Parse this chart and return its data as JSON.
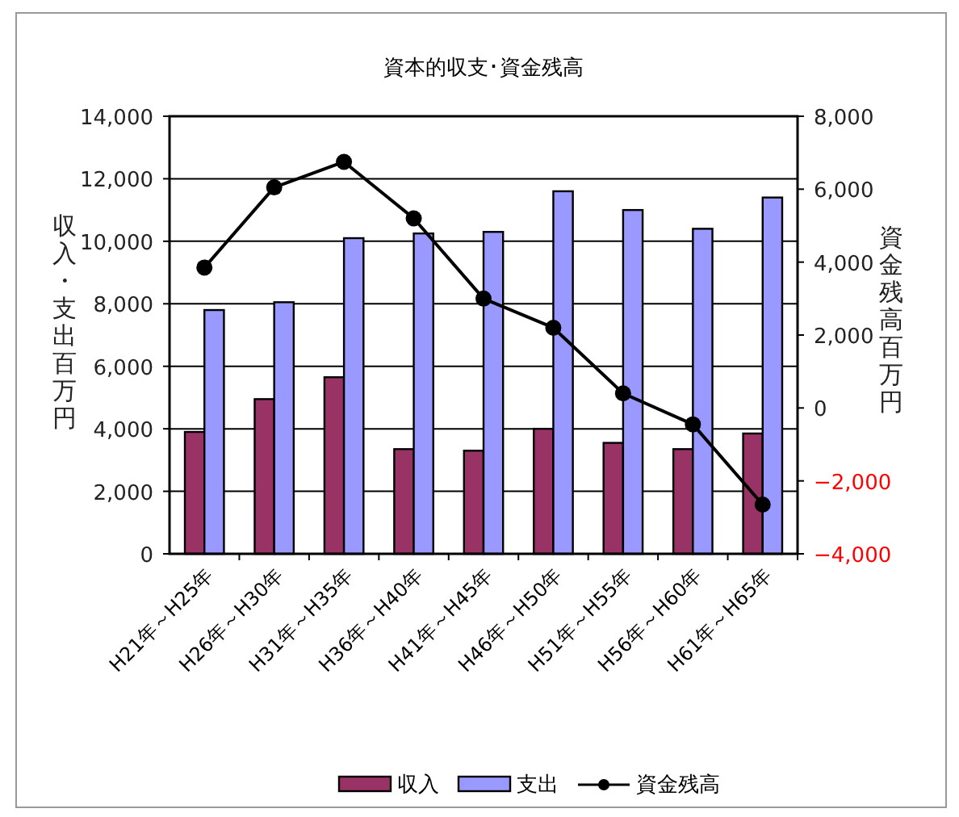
{
  "chart_data": {
    "type": "bar",
    "title": "資本的収支･資金残高",
    "ylabel": "収入・支出百万円",
    "y2label": "資金残高百万円",
    "categories": [
      "H21年～H25年",
      "H26年～H30年",
      "H31年～H35年",
      "H36年～H40年",
      "H41年～H45年",
      "H46年～H50年",
      "H51年～H55年",
      "H56年～H60年",
      "H61年～H65年"
    ],
    "series": [
      {
        "name": "収入",
        "color": "#993366",
        "values": [
          3900,
          4950,
          5650,
          3350,
          3300,
          4000,
          3550,
          3350,
          3850
        ]
      },
      {
        "name": "支出",
        "color": "#9999ff",
        "values": [
          7800,
          8050,
          10100,
          10250,
          10300,
          11600,
          11000,
          10400,
          11400
        ]
      },
      {
        "name": "資金残高",
        "type": "line",
        "axis": "y2",
        "color": "#000000",
        "marker": "circle",
        "values": [
          3850,
          6050,
          6750,
          5200,
          3000,
          2200,
          400,
          -450,
          -2650
        ]
      }
    ],
    "ylim": [
      0,
      14000
    ],
    "yticks": [
      {
        "value": 0,
        "label": "0"
      },
      {
        "value": 2000,
        "label": "2,000"
      },
      {
        "value": 4000,
        "label": "4,000"
      },
      {
        "value": 6000,
        "label": "6,000"
      },
      {
        "value": 8000,
        "label": "8,000"
      },
      {
        "value": 10000,
        "label": "10,000"
      },
      {
        "value": 12000,
        "label": "12,000"
      },
      {
        "value": 14000,
        "label": "14,000"
      }
    ],
    "y2lim": [
      -4000,
      8000
    ],
    "y2ticks": [
      {
        "value": -4000,
        "label": "−4,000"
      },
      {
        "value": -2000,
        "label": "−2,000"
      },
      {
        "value": 0,
        "label": "0"
      },
      {
        "value": 2000,
        "label": "2,000"
      },
      {
        "value": 4000,
        "label": "4,000"
      },
      {
        "value": 6000,
        "label": "6,000"
      },
      {
        "value": 8000,
        "label": "8,000"
      }
    ],
    "grid": "y",
    "legend": "bottom"
  }
}
